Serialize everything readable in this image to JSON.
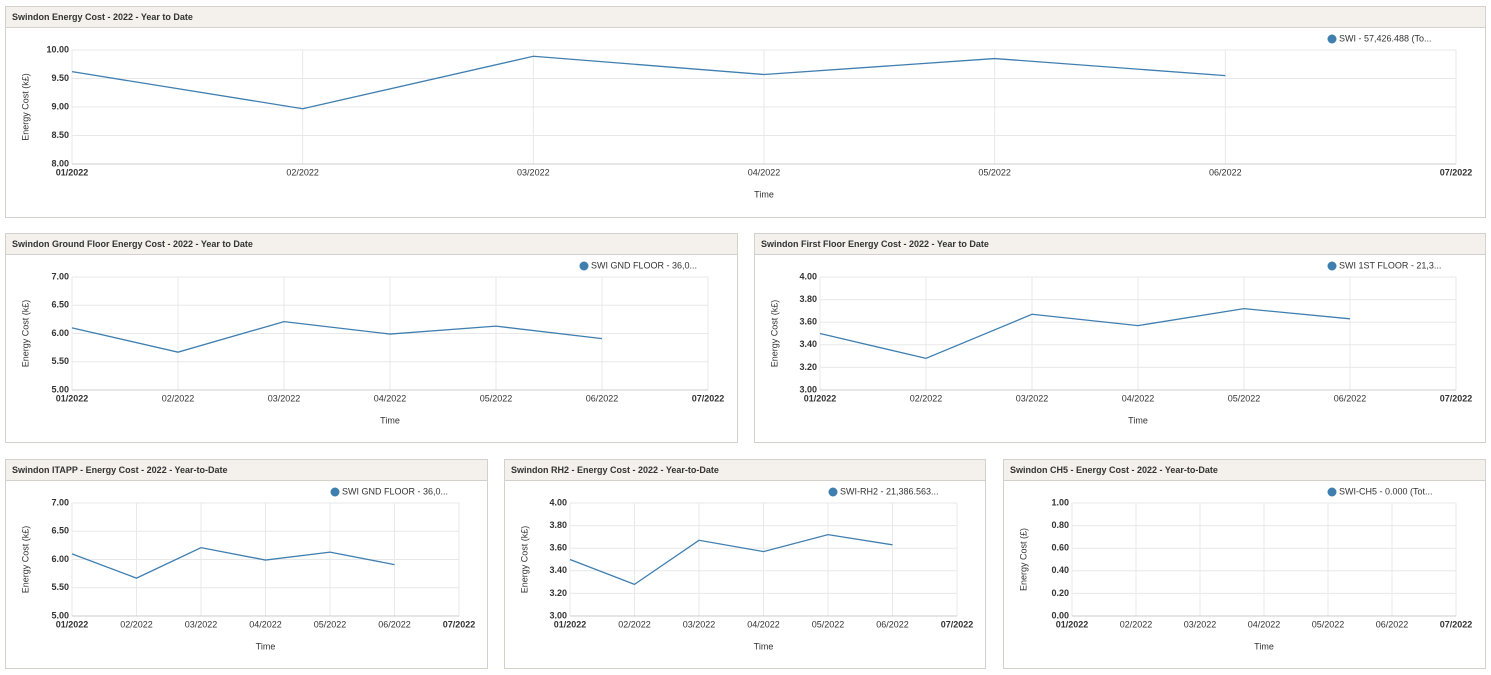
{
  "chart_data": [
    {
      "type": "line",
      "title": "Swindon Energy Cost - 2022 - Year to Date",
      "x_label": "Time",
      "y_label": "Energy Cost (k£)",
      "categories": [
        "01/2022",
        "02/2022",
        "03/2022",
        "04/2022",
        "05/2022",
        "06/2022",
        "07/2022"
      ],
      "series": [
        {
          "name": "SWI - 57,426.488 (To...",
          "color": "#3f7fb0",
          "values": [
            9.62,
            8.97,
            9.89,
            9.57,
            9.85,
            9.55,
            null
          ]
        }
      ],
      "ylim": [
        8,
        10
      ],
      "yticks": [
        {
          "value": 8,
          "label": "8.00"
        },
        {
          "value": 8.5,
          "label": "8.50"
        },
        {
          "value": 9,
          "label": "9.00"
        },
        {
          "value": 9.5,
          "label": "9.50"
        },
        {
          "value": 10,
          "label": "10.00"
        }
      ],
      "grid": true,
      "legend": "top-right"
    },
    {
      "type": "line",
      "title": "Swindon Ground Floor Energy Cost - 2022 - Year to Date",
      "x_label": "Time",
      "y_label": "Energy Cost (k£)",
      "categories": [
        "01/2022",
        "02/2022",
        "03/2022",
        "04/2022",
        "05/2022",
        "06/2022",
        "07/2022"
      ],
      "series": [
        {
          "name": "SWI GND FLOOR - 36,0...",
          "color": "#3f7fb0",
          "values": [
            6.1,
            5.67,
            6.21,
            5.99,
            6.13,
            5.91,
            null
          ]
        }
      ],
      "ylim": [
        5,
        7
      ],
      "yticks": [
        {
          "value": 5,
          "label": "5.00"
        },
        {
          "value": 5.5,
          "label": "5.50"
        },
        {
          "value": 6,
          "label": "6.00"
        },
        {
          "value": 6.5,
          "label": "6.50"
        },
        {
          "value": 7,
          "label": "7.00"
        }
      ],
      "grid": true,
      "legend": "top-right"
    },
    {
      "type": "line",
      "title": "Swindon First Floor Energy Cost - 2022 - Year to Date",
      "x_label": "Time",
      "y_label": "Energy Cost (k£)",
      "categories": [
        "01/2022",
        "02/2022",
        "03/2022",
        "04/2022",
        "05/2022",
        "06/2022",
        "07/2022"
      ],
      "series": [
        {
          "name": "SWI 1ST FLOOR - 21,3...",
          "color": "#3f7fb0",
          "values": [
            3.5,
            3.28,
            3.67,
            3.57,
            3.72,
            3.63,
            null
          ]
        }
      ],
      "ylim": [
        3,
        4
      ],
      "yticks": [
        {
          "value": 3,
          "label": "3.00"
        },
        {
          "value": 3.2,
          "label": "3.20"
        },
        {
          "value": 3.4,
          "label": "3.40"
        },
        {
          "value": 3.6,
          "label": "3.60"
        },
        {
          "value": 3.8,
          "label": "3.80"
        },
        {
          "value": 4,
          "label": "4.00"
        }
      ],
      "grid": true,
      "legend": "top-right"
    },
    {
      "type": "line",
      "title": "Swindon ITAPP - Energy Cost - 2022 - Year-to-Date",
      "x_label": "Time",
      "y_label": "Energy Cost (k£)",
      "categories": [
        "01/2022",
        "02/2022",
        "03/2022",
        "04/2022",
        "05/2022",
        "06/2022",
        "07/2022"
      ],
      "series": [
        {
          "name": "SWI GND FLOOR - 36,0...",
          "color": "#3f7fb0",
          "values": [
            6.1,
            5.67,
            6.21,
            5.99,
            6.13,
            5.91,
            null
          ]
        }
      ],
      "ylim": [
        5,
        7
      ],
      "yticks": [
        {
          "value": 5,
          "label": "5.00"
        },
        {
          "value": 5.5,
          "label": "5.50"
        },
        {
          "value": 6,
          "label": "6.00"
        },
        {
          "value": 6.5,
          "label": "6.50"
        },
        {
          "value": 7,
          "label": "7.00"
        }
      ],
      "grid": true,
      "legend": "top-right"
    },
    {
      "type": "line",
      "title": "Swindon RH2 - Energy Cost - 2022 - Year-to-Date",
      "x_label": "Time",
      "y_label": "Energy Cost (k£)",
      "categories": [
        "01/2022",
        "02/2022",
        "03/2022",
        "04/2022",
        "05/2022",
        "06/2022",
        "07/2022"
      ],
      "series": [
        {
          "name": "SWI-RH2 - 21,386.563...",
          "color": "#3f7fb0",
          "values": [
            3.5,
            3.28,
            3.67,
            3.57,
            3.72,
            3.63,
            null
          ]
        }
      ],
      "ylim": [
        3,
        4
      ],
      "yticks": [
        {
          "value": 3,
          "label": "3.00"
        },
        {
          "value": 3.2,
          "label": "3.20"
        },
        {
          "value": 3.4,
          "label": "3.40"
        },
        {
          "value": 3.6,
          "label": "3.60"
        },
        {
          "value": 3.8,
          "label": "3.80"
        },
        {
          "value": 4,
          "label": "4.00"
        }
      ],
      "grid": true,
      "legend": "top-right"
    },
    {
      "type": "line",
      "title": "Swindon CH5 - Energy Cost - 2022 - Year-to-Date",
      "x_label": "Time",
      "y_label": "Energy Cost (£)",
      "categories": [
        "01/2022",
        "02/2022",
        "03/2022",
        "04/2022",
        "05/2022",
        "06/2022",
        "07/2022"
      ],
      "series": [
        {
          "name": "SWI-CH5 - 0.000 (Tot...",
          "color": "#3f7fb0",
          "values": [
            null,
            null,
            null,
            null,
            null,
            null,
            null
          ]
        }
      ],
      "ylim": [
        0,
        1
      ],
      "yticks": [
        {
          "value": 0,
          "label": "0.00"
        },
        {
          "value": 0.2,
          "label": "0.20"
        },
        {
          "value": 0.4,
          "label": "0.40"
        },
        {
          "value": 0.6,
          "label": "0.60"
        },
        {
          "value": 0.8,
          "label": "0.80"
        },
        {
          "value": 1,
          "label": "1.00"
        }
      ],
      "grid": true,
      "legend": "top-right"
    }
  ]
}
